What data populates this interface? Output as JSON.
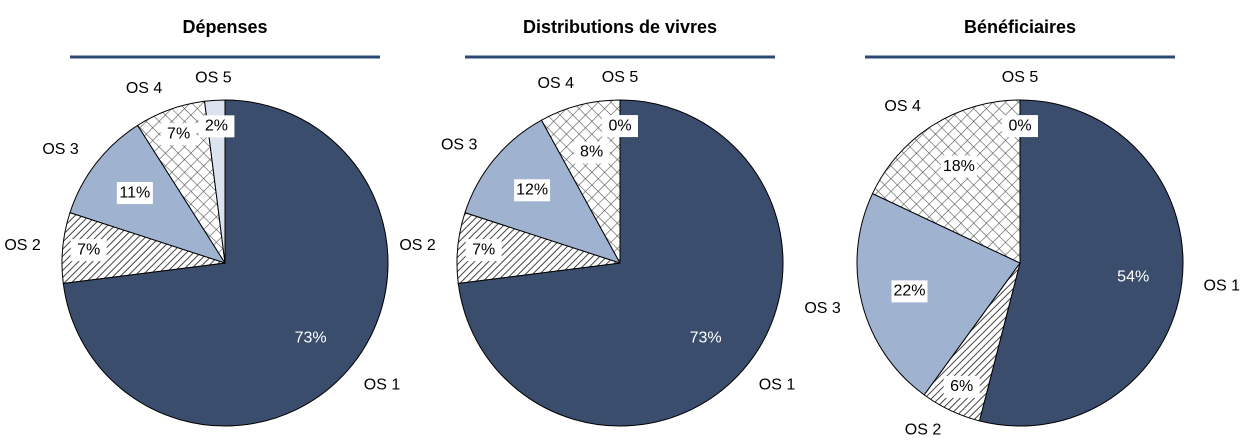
{
  "chart_data": [
    {
      "type": "pie",
      "title": "Dépenses",
      "categories": [
        "OS 1",
        "OS 2",
        "OS 3",
        "OS 4",
        "OS 5"
      ],
      "values": [
        73,
        7,
        11,
        7,
        2
      ],
      "value_labels": [
        "73%",
        "7%",
        "11%",
        "7%",
        "2%"
      ],
      "colors": [
        "#3b4d6d",
        "#555555",
        "#9fb2d0",
        "#555555",
        "#dbe3ef"
      ],
      "patterns": [
        "solid",
        "hatch",
        "solid",
        "crosshatch",
        "solid"
      ]
    },
    {
      "type": "pie",
      "title": "Distributions de vivres",
      "categories": [
        "OS 1",
        "OS 2",
        "OS 3",
        "OS 4",
        "OS 5"
      ],
      "values": [
        73,
        7,
        12,
        8,
        0
      ],
      "value_labels": [
        "73%",
        "7%",
        "12%",
        "8%",
        "0%"
      ],
      "colors": [
        "#3b4d6d",
        "#555555",
        "#9fb2d0",
        "#555555",
        "#dbe3ef"
      ],
      "patterns": [
        "solid",
        "hatch",
        "solid",
        "crosshatch",
        "solid"
      ]
    },
    {
      "type": "pie",
      "title": "Bénéficiaires",
      "categories": [
        "OS 1",
        "OS 2",
        "OS 3",
        "OS 4",
        "OS 5"
      ],
      "values": [
        54,
        6,
        22,
        18,
        0
      ],
      "value_labels": [
        "54%",
        "6%",
        "22%",
        "18%",
        "0%"
      ],
      "colors": [
        "#3b4d6d",
        "#555555",
        "#9fb2d0",
        "#555555",
        "#dbe3ef"
      ],
      "patterns": [
        "solid",
        "hatch",
        "solid",
        "crosshatch",
        "solid"
      ]
    }
  ]
}
